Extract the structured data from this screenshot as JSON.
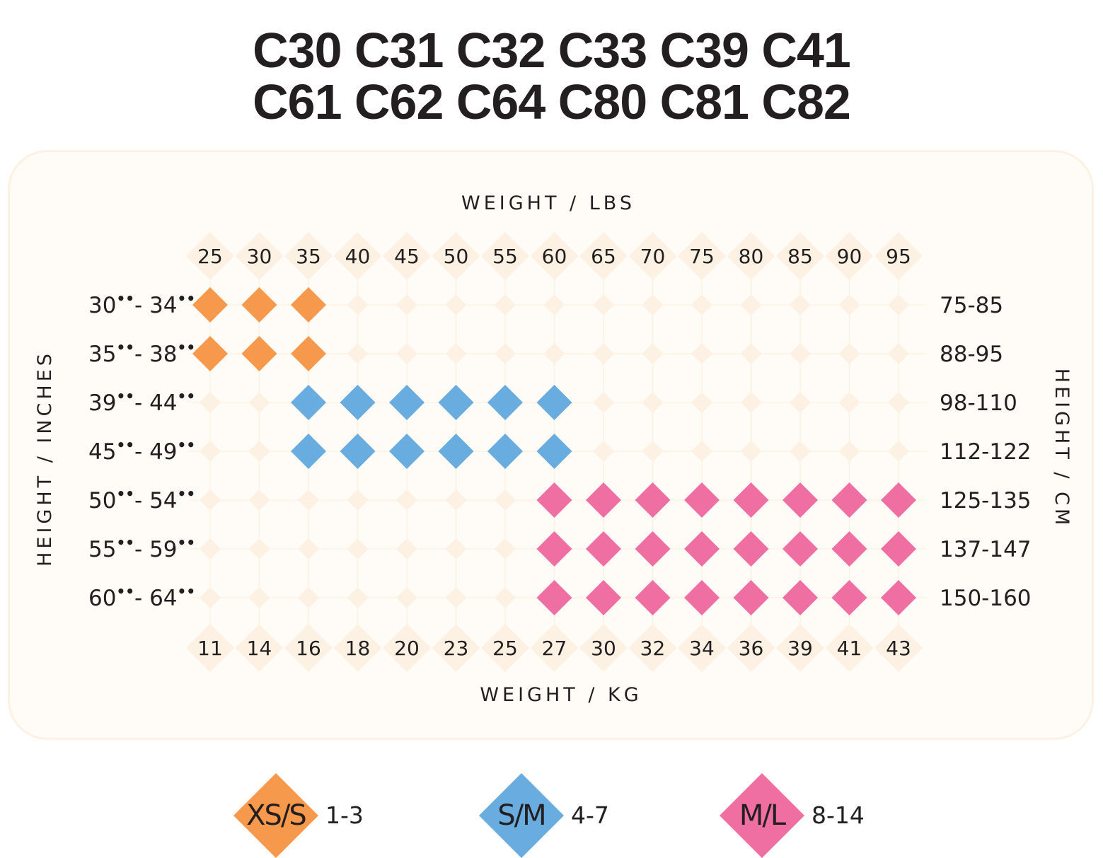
{
  "title": {
    "line1": "C30 C31 C32 C33 C39 C41",
    "line2": "C61 C62 C64 C80 C81 C82"
  },
  "chart_data": {
    "type": "table",
    "top_axis_title": "WEIGHT / LBS",
    "bottom_axis_title": "WEIGHT / KG",
    "left_axis_title": "HEIGHT / INCHES",
    "right_axis_title": "HEIGHT / CM",
    "weight_lbs": [
      "25",
      "30",
      "35",
      "40",
      "45",
      "50",
      "55",
      "60",
      "65",
      "70",
      "75",
      "80",
      "85",
      "90",
      "95"
    ],
    "weight_kg": [
      "11",
      "14",
      "16",
      "18",
      "20",
      "23",
      "25",
      "27",
      "30",
      "32",
      "34",
      "36",
      "39",
      "41",
      "43"
    ],
    "height_inches": [
      {
        "from": "30",
        "to": "34"
      },
      {
        "from": "35",
        "to": "38"
      },
      {
        "from": "39",
        "to": "44"
      },
      {
        "from": "45",
        "to": "49"
      },
      {
        "from": "50",
        "to": "54"
      },
      {
        "from": "55",
        "to": "59"
      },
      {
        "from": "60",
        "to": "64"
      }
    ],
    "height_cm": [
      "75-85",
      "88-95",
      "98-110",
      "112-122",
      "125-135",
      "137-147",
      "150-160"
    ],
    "sizes": [
      {
        "label": "XS/S",
        "range": "1-3",
        "color": "#f7994d"
      },
      {
        "label": "S/M",
        "range": "4-7",
        "color": "#68ace0"
      },
      {
        "label": "M/L",
        "range": "8-14",
        "color": "#ef6fa3"
      }
    ],
    "grid": [
      [
        0,
        0,
        0,
        -1,
        -1,
        -1,
        -1,
        -1,
        -1,
        -1,
        -1,
        -1,
        -1,
        -1,
        -1
      ],
      [
        0,
        0,
        0,
        -1,
        -1,
        -1,
        -1,
        -1,
        -1,
        -1,
        -1,
        -1,
        -1,
        -1,
        -1
      ],
      [
        -1,
        -1,
        1,
        1,
        1,
        1,
        1,
        1,
        -1,
        -1,
        -1,
        -1,
        -1,
        -1,
        -1
      ],
      [
        -1,
        -1,
        1,
        1,
        1,
        1,
        1,
        1,
        -1,
        -1,
        -1,
        -1,
        -1,
        -1,
        -1
      ],
      [
        -1,
        -1,
        -1,
        -1,
        -1,
        -1,
        -1,
        2,
        2,
        2,
        2,
        2,
        2,
        2,
        2
      ],
      [
        -1,
        -1,
        -1,
        -1,
        -1,
        -1,
        -1,
        2,
        2,
        2,
        2,
        2,
        2,
        2,
        2
      ],
      [
        -1,
        -1,
        -1,
        -1,
        -1,
        -1,
        -1,
        2,
        2,
        2,
        2,
        2,
        2,
        2,
        2
      ]
    ],
    "background_marker_color": "#fdf1e3",
    "panel_color": "#fffbf6"
  }
}
